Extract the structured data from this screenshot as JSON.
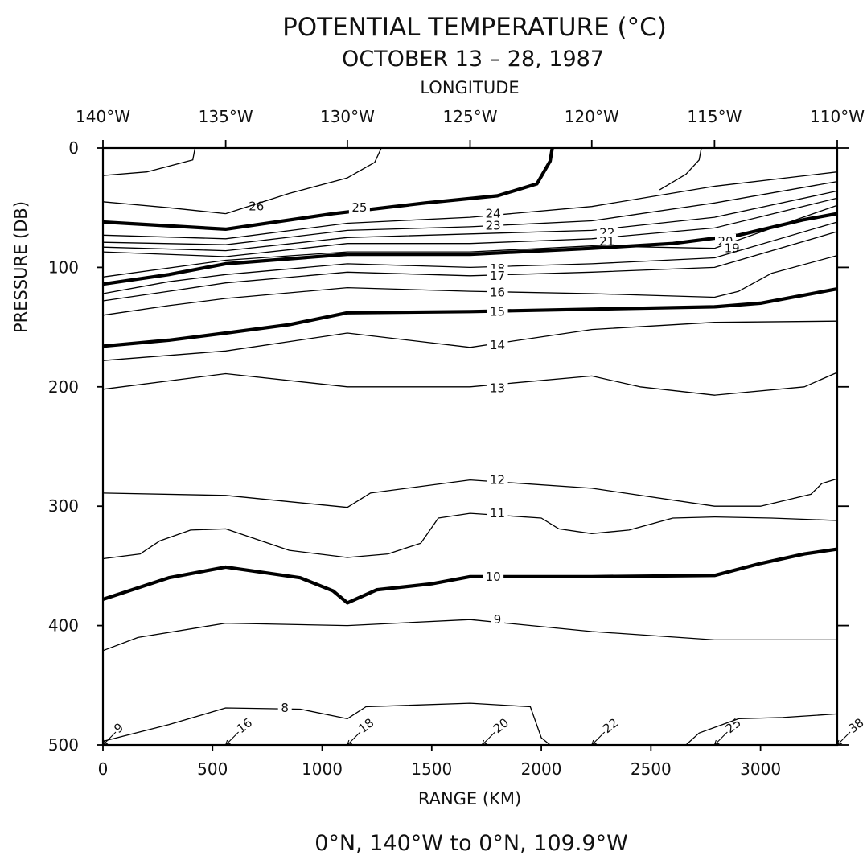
{
  "title": "POTENTIAL TEMPERATURE (°C)",
  "subtitle": "OCTOBER 13 – 28, 1987",
  "footer": "0°N, 140°W to 0°N, 109.9°W",
  "chart_data": {
    "type": "contour",
    "title": "POTENTIAL TEMPERATURE (°C)",
    "subtitle": "OCTOBER 13 – 28, 1987",
    "xlabel": "RANGE (KM)",
    "ylabel": "PRESSURE (DB)",
    "top_axis_label": "LONGITUDE",
    "xlim": [
      0,
      3350
    ],
    "ylim": [
      500,
      0
    ],
    "x_ticks": [
      {
        "value": 0,
        "label": "0"
      },
      {
        "value": 500,
        "label": "500"
      },
      {
        "value": 1000,
        "label": "1000"
      },
      {
        "value": 1500,
        "label": "1500"
      },
      {
        "value": 2000,
        "label": "2000"
      },
      {
        "value": 2500,
        "label": "2500"
      },
      {
        "value": 3000,
        "label": "3000"
      }
    ],
    "y_ticks": [
      {
        "value": 0,
        "label": "0"
      },
      {
        "value": 100,
        "label": "100"
      },
      {
        "value": 200,
        "label": "200"
      },
      {
        "value": 300,
        "label": "300"
      },
      {
        "value": 400,
        "label": "400"
      },
      {
        "value": 500,
        "label": "500"
      }
    ],
    "top_ticks": [
      {
        "value": 0,
        "label": "140°W"
      },
      {
        "value": 560,
        "label": "135°W"
      },
      {
        "value": 1115,
        "label": "130°W"
      },
      {
        "value": 1675,
        "label": "125°W"
      },
      {
        "value": 2230,
        "label": "120°W"
      },
      {
        "value": 2790,
        "label": "115°W"
      },
      {
        "value": 3350,
        "label": "110°W"
      }
    ],
    "stations": [
      {
        "x": 0,
        "label": "9"
      },
      {
        "x": 560,
        "label": "16"
      },
      {
        "x": 1115,
        "label": "18"
      },
      {
        "x": 1730,
        "label": "20"
      },
      {
        "x": 2230,
        "label": "22"
      },
      {
        "x": 2790,
        "label": "25"
      },
      {
        "x": 3350,
        "label": "38"
      }
    ],
    "contours": [
      {
        "level": "26",
        "bold": false,
        "label": {
          "x": 700,
          "y": 49
        },
        "points": [
          [
            0,
            23
          ],
          [
            200,
            20
          ],
          [
            410,
            10
          ],
          [
            420,
            0
          ]
        ]
      },
      {
        "level": "26",
        "bold": false,
        "label": null,
        "points": [
          [
            1115,
            0
          ]
        ]
      },
      {
        "level": "26",
        "bold": false,
        "label": null,
        "points": [
          [
            560,
            55
          ],
          [
            850,
            38
          ],
          [
            1115,
            25
          ],
          [
            1240,
            12
          ],
          [
            1270,
            0
          ]
        ]
      },
      {
        "level": "26",
        "bold": false,
        "label": null,
        "points": [
          [
            0,
            45
          ],
          [
            300,
            50
          ],
          [
            560,
            55
          ]
        ]
      },
      {
        "level": "26",
        "bold": false,
        "label": null,
        "points": [
          [
            2540,
            35
          ],
          [
            2660,
            22
          ],
          [
            2720,
            10
          ],
          [
            2730,
            0
          ]
        ]
      },
      {
        "level": "25",
        "bold": true,
        "label": {
          "x": 1170,
          "y": 50
        },
        "points": [
          [
            0,
            62
          ],
          [
            560,
            68
          ],
          [
            1050,
            55
          ],
          [
            1470,
            46
          ],
          [
            1800,
            40
          ],
          [
            1980,
            30
          ],
          [
            2040,
            11
          ],
          [
            2050,
            0
          ]
        ]
      },
      {
        "level": "24",
        "bold": false,
        "label": {
          "x": 1780,
          "y": 55
        },
        "points": [
          [
            0,
            73
          ],
          [
            560,
            76
          ],
          [
            1115,
            63
          ],
          [
            1675,
            58
          ],
          [
            2230,
            49
          ],
          [
            2790,
            32
          ],
          [
            3350,
            20
          ]
        ]
      },
      {
        "level": "23",
        "bold": false,
        "label": {
          "x": 1780,
          "y": 65
        },
        "points": [
          [
            0,
            79
          ],
          [
            560,
            81
          ],
          [
            1115,
            69
          ],
          [
            1675,
            66
          ],
          [
            2230,
            61
          ],
          [
            2790,
            46
          ],
          [
            3350,
            28
          ]
        ]
      },
      {
        "level": "22",
        "bold": false,
        "label": {
          "x": 2300,
          "y": 71
        },
        "points": [
          [
            0,
            83
          ],
          [
            560,
            86
          ],
          [
            1115,
            75
          ],
          [
            1675,
            72
          ],
          [
            2230,
            69
          ],
          [
            2790,
            58
          ],
          [
            3350,
            36
          ]
        ]
      },
      {
        "level": "21",
        "bold": false,
        "label": {
          "x": 2300,
          "y": 78
        },
        "points": [
          [
            0,
            87
          ],
          [
            560,
            91
          ],
          [
            1115,
            80
          ],
          [
            1675,
            80
          ],
          [
            2230,
            76
          ],
          [
            2790,
            67
          ],
          [
            3350,
            42
          ]
        ]
      },
      {
        "level": "20",
        "bold": true,
        "label": {
          "x": 2840,
          "y": 78
        },
        "points": [
          [
            0,
            114
          ],
          [
            300,
            106
          ],
          [
            560,
            97
          ],
          [
            1115,
            89
          ],
          [
            1675,
            89
          ],
          [
            2230,
            84
          ],
          [
            2600,
            80
          ],
          [
            2900,
            73
          ],
          [
            3200,
            60
          ],
          [
            3350,
            55
          ]
        ]
      },
      {
        "level": "19",
        "bold": false,
        "label": {
          "x": 2870,
          "y": 84
        },
        "points": [
          [
            0,
            108
          ],
          [
            560,
            94
          ],
          [
            1115,
            87
          ],
          [
            1675,
            87
          ],
          [
            2230,
            82
          ],
          [
            2790,
            84
          ],
          [
            3350,
            48
          ]
        ]
      },
      {
        "level": "18",
        "bold": false,
        "label": {
          "x": 1800,
          "y": 101
        },
        "points": [
          [
            0,
            122
          ],
          [
            300,
            112
          ],
          [
            560,
            106
          ],
          [
            1115,
            97
          ],
          [
            1675,
            100
          ],
          [
            2230,
            97
          ],
          [
            2790,
            92
          ],
          [
            3350,
            62
          ]
        ]
      },
      {
        "level": "17",
        "bold": false,
        "label": {
          "x": 1800,
          "y": 107
        },
        "points": [
          [
            0,
            128
          ],
          [
            300,
            120
          ],
          [
            560,
            113
          ],
          [
            1115,
            104
          ],
          [
            1675,
            107
          ],
          [
            2230,
            104
          ],
          [
            2790,
            100
          ],
          [
            3350,
            70
          ]
        ]
      },
      {
        "level": "16",
        "bold": false,
        "label": {
          "x": 1800,
          "y": 121
        },
        "points": [
          [
            0,
            140
          ],
          [
            300,
            132
          ],
          [
            560,
            126
          ],
          [
            1115,
            117
          ],
          [
            1675,
            120
          ],
          [
            2230,
            122
          ],
          [
            2790,
            125
          ],
          [
            2900,
            120
          ],
          [
            3050,
            105
          ],
          [
            3350,
            90
          ]
        ]
      },
      {
        "level": "15",
        "bold": true,
        "label": {
          "x": 1800,
          "y": 137
        },
        "points": [
          [
            0,
            166
          ],
          [
            300,
            161
          ],
          [
            560,
            155
          ],
          [
            850,
            148
          ],
          [
            1115,
            138
          ],
          [
            1675,
            137
          ],
          [
            2230,
            135
          ],
          [
            2790,
            133
          ],
          [
            3000,
            130
          ],
          [
            3350,
            118
          ]
        ]
      },
      {
        "level": "14",
        "bold": false,
        "label": {
          "x": 1800,
          "y": 165
        },
        "points": [
          [
            0,
            178
          ],
          [
            560,
            170
          ],
          [
            1115,
            155
          ],
          [
            1675,
            167
          ],
          [
            2230,
            152
          ],
          [
            2790,
            146
          ],
          [
            3350,
            145
          ]
        ]
      },
      {
        "level": "13",
        "bold": false,
        "label": {
          "x": 1800,
          "y": 201
        },
        "points": [
          [
            0,
            202
          ],
          [
            560,
            189
          ],
          [
            1115,
            200
          ],
          [
            1675,
            200
          ],
          [
            2230,
            191
          ],
          [
            2450,
            200
          ],
          [
            2790,
            207
          ],
          [
            3200,
            200
          ],
          [
            3350,
            188
          ]
        ]
      },
      {
        "level": "12",
        "bold": false,
        "label": {
          "x": 1800,
          "y": 278
        },
        "points": [
          [
            0,
            289
          ],
          [
            560,
            291
          ],
          [
            1115,
            301
          ],
          [
            1220,
            289
          ],
          [
            1675,
            278
          ],
          [
            2230,
            285
          ],
          [
            2790,
            300
          ],
          [
            3000,
            300
          ],
          [
            3230,
            290
          ],
          [
            3280,
            281
          ],
          [
            3350,
            277
          ]
        ]
      },
      {
        "level": "11",
        "bold": false,
        "label": {
          "x": 1800,
          "y": 306
        },
        "points": [
          [
            0,
            344
          ],
          [
            170,
            340
          ],
          [
            260,
            329
          ],
          [
            400,
            320
          ],
          [
            560,
            319
          ],
          [
            850,
            337
          ],
          [
            1115,
            343
          ],
          [
            1300,
            340
          ],
          [
            1450,
            331
          ],
          [
            1530,
            310
          ],
          [
            1675,
            306
          ],
          [
            2000,
            310
          ],
          [
            2080,
            319
          ],
          [
            2230,
            323
          ],
          [
            2400,
            320
          ],
          [
            2600,
            310
          ],
          [
            2790,
            309
          ],
          [
            3050,
            310
          ],
          [
            3350,
            312
          ]
        ]
      },
      {
        "level": "10",
        "bold": true,
        "label": {
          "x": 1780,
          "y": 359
        },
        "points": [
          [
            0,
            378
          ],
          [
            300,
            360
          ],
          [
            560,
            351
          ],
          [
            900,
            360
          ],
          [
            1050,
            371
          ],
          [
            1115,
            381
          ],
          [
            1250,
            370
          ],
          [
            1500,
            365
          ],
          [
            1675,
            359
          ],
          [
            2230,
            359
          ],
          [
            2790,
            358
          ],
          [
            3000,
            348
          ],
          [
            3200,
            340
          ],
          [
            3350,
            336
          ]
        ]
      },
      {
        "level": "9",
        "bold": false,
        "label": {
          "x": 1800,
          "y": 395
        },
        "points": [
          [
            0,
            421
          ],
          [
            160,
            410
          ],
          [
            560,
            398
          ],
          [
            1115,
            400
          ],
          [
            1675,
            395
          ],
          [
            2230,
            405
          ],
          [
            2790,
            412
          ],
          [
            3350,
            412
          ]
        ]
      },
      {
        "level": "8",
        "bold": false,
        "label": {
          "x": 830,
          "y": 469
        },
        "points": [
          [
            0,
            497
          ],
          [
            300,
            483
          ],
          [
            560,
            469
          ],
          [
            900,
            470
          ],
          [
            1115,
            478
          ],
          [
            1200,
            468
          ],
          [
            1675,
            465
          ],
          [
            1950,
            468
          ],
          [
            2000,
            494
          ],
          [
            2040,
            500
          ]
        ]
      },
      {
        "level": "8",
        "bold": false,
        "label": null,
        "points": [
          [
            2660,
            500
          ],
          [
            2720,
            490
          ],
          [
            2900,
            478
          ],
          [
            3100,
            477
          ],
          [
            3350,
            474
          ]
        ]
      }
    ]
  }
}
